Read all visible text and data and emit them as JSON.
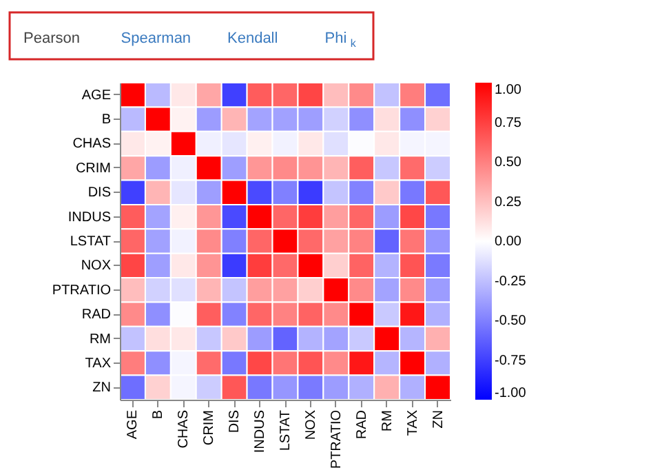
{
  "chart_data": {
    "type": "heatmap",
    "annotations": [
      "Pearson",
      "Spearman",
      "Kendall",
      "Phi$_{k}$"
    ],
    "categories": [
      "AGE",
      "B",
      "CHAS",
      "CRIM",
      "DIS",
      "INDUS",
      "LSTAT",
      "NOX",
      "PTRATIO",
      "RAD",
      "RM",
      "TAX",
      "ZN"
    ],
    "y_categories": [
      "AGE",
      "B",
      "CHAS",
      "CRIM",
      "DIS",
      "INDUS",
      "LSTAT",
      "NOX",
      "PTRATIO",
      "RAD",
      "RM",
      "TAX",
      "ZN"
    ],
    "cells": [
      [
        1,
        -0.27,
        0.09,
        0.35,
        -0.75,
        0.64,
        0.6,
        0.73,
        0.26,
        0.46,
        -0.24,
        0.51,
        -0.57
      ],
      [
        -0.27,
        1,
        0.05,
        -0.39,
        0.29,
        -0.36,
        -0.37,
        -0.38,
        -0.18,
        -0.44,
        0.13,
        -0.44,
        0.18
      ],
      [
        0.09,
        0.05,
        1,
        -0.06,
        -0.1,
        0.06,
        -0.05,
        0.09,
        -0.12,
        -0.01,
        0.09,
        -0.04,
        -0.04
      ],
      [
        0.35,
        -0.39,
        -0.06,
        1,
        -0.38,
        0.41,
        0.46,
        0.42,
        0.29,
        0.63,
        -0.22,
        0.58,
        -0.2
      ],
      [
        -0.75,
        0.29,
        -0.1,
        -0.38,
        1,
        -0.71,
        -0.5,
        -0.77,
        -0.23,
        -0.49,
        0.21,
        -0.53,
        0.66
      ],
      [
        0.64,
        -0.36,
        0.06,
        0.41,
        -0.71,
        1,
        0.6,
        0.76,
        0.38,
        0.6,
        -0.39,
        0.72,
        -0.53
      ],
      [
        0.6,
        -0.37,
        -0.05,
        0.46,
        -0.5,
        0.6,
        1,
        0.59,
        0.37,
        0.49,
        -0.61,
        0.54,
        -0.41
      ],
      [
        0.73,
        -0.38,
        0.09,
        0.42,
        -0.77,
        0.76,
        0.59,
        1,
        0.19,
        0.61,
        -0.3,
        0.67,
        -0.52
      ],
      [
        0.26,
        -0.18,
        -0.12,
        0.29,
        -0.23,
        0.38,
        0.37,
        0.19,
        1,
        0.46,
        -0.36,
        0.46,
        -0.39
      ],
      [
        0.46,
        -0.44,
        -0.01,
        0.63,
        -0.49,
        0.6,
        0.49,
        0.61,
        0.46,
        1,
        -0.21,
        0.91,
        -0.31
      ],
      [
        -0.24,
        0.13,
        0.09,
        -0.22,
        0.21,
        -0.39,
        -0.61,
        -0.3,
        -0.36,
        -0.21,
        1,
        -0.29,
        0.31
      ],
      [
        0.51,
        -0.44,
        -0.04,
        0.58,
        -0.53,
        0.72,
        0.54,
        0.67,
        0.46,
        0.91,
        -0.29,
        1,
        -0.31
      ],
      [
        -0.57,
        0.18,
        -0.04,
        -0.2,
        0.66,
        -0.53,
        -0.41,
        -0.52,
        -0.39,
        -0.31,
        0.31,
        -0.31,
        1
      ]
    ],
    "clim": [
      -1,
      1
    ],
    "cticks": [
      {
        "value": 1,
        "label": "1.00"
      },
      {
        "value": 0.75,
        "label": "0.75"
      },
      {
        "value": 0.5,
        "label": "0.50"
      },
      {
        "value": 0.25,
        "label": "0.25"
      },
      {
        "value": 0,
        "label": "0.00"
      },
      {
        "value": -0.25,
        "label": "-0.25"
      },
      {
        "value": -0.5,
        "label": "-0.50"
      },
      {
        "value": -0.75,
        "label": "-0.75"
      },
      {
        "value": -1,
        "label": "-1.00"
      }
    ]
  }
}
